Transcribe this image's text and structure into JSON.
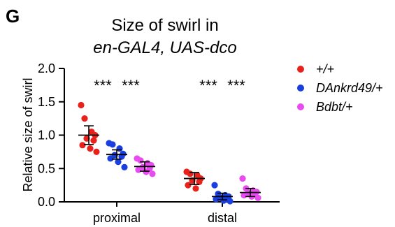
{
  "panel_label": "G",
  "chart_data": {
    "type": "scatter",
    "title_lines": [
      "Size of swirl in",
      "en-GAL4, UAS-dco"
    ],
    "ylabel": "Relative size of swirl",
    "xlabel": "",
    "ylim": [
      0,
      2.0
    ],
    "yticks": [
      "0.0",
      "0.5",
      "1.0",
      "1.5",
      "2.0"
    ],
    "categories": [
      "proximal",
      "distal"
    ],
    "significance": [
      {
        "category": "proximal",
        "labels": [
          "***",
          "***"
        ]
      },
      {
        "category": "distal",
        "labels": [
          "***",
          "***"
        ]
      }
    ],
    "series": [
      {
        "name": "+/+",
        "color": "#e8221a",
        "mean": [
          1.0,
          0.35
        ],
        "err": [
          0.14,
          0.09
        ],
        "points": [
          [
            1.45,
            1.25,
            1.05,
            1.0,
            0.95,
            0.92,
            0.85,
            0.8,
            0.75
          ],
          [
            0.45,
            0.42,
            0.4,
            0.35,
            0.32,
            0.3,
            0.25,
            0.2
          ]
        ]
      },
      {
        "name": "DAnkrd49/+",
        "color": "#1a3fe0",
        "mean": [
          0.71,
          0.08
        ],
        "err": [
          0.07,
          0.05
        ],
        "points": [
          [
            0.88,
            0.86,
            0.8,
            0.72,
            0.7,
            0.68,
            0.65,
            0.6,
            0.52
          ],
          [
            0.25,
            0.12,
            0.1,
            0.08,
            0.06,
            0.05,
            0.04,
            0.02,
            0.01
          ]
        ]
      },
      {
        "name": "Bdbt/+",
        "color": "#e84cf0",
        "mean": [
          0.53,
          0.14
        ],
        "err": [
          0.07,
          0.06
        ],
        "points": [
          [
            0.65,
            0.62,
            0.58,
            0.55,
            0.52,
            0.5,
            0.48,
            0.45,
            0.42
          ],
          [
            0.35,
            0.2,
            0.17,
            0.15,
            0.13,
            0.12,
            0.1,
            0.08,
            0.06
          ]
        ]
      }
    ]
  }
}
